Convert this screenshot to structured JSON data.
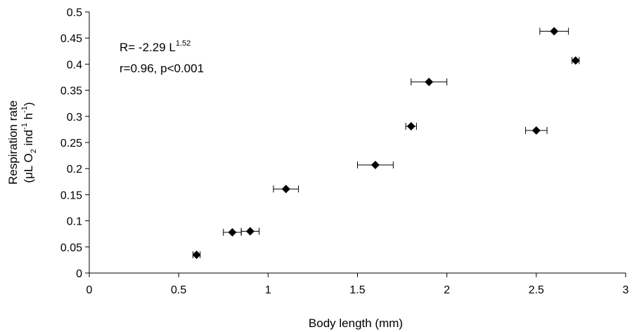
{
  "chart_data": {
    "type": "scatter",
    "xlabel": "Body length (mm)",
    "ylabel": {
      "line1": "Respiration rate",
      "line2_parts": [
        "(μL O",
        "2",
        " ind",
        "-1",
        " h",
        "-1",
        ")"
      ]
    },
    "xlim": [
      0,
      3
    ],
    "ylim": [
      0,
      0.5
    ],
    "x_ticks": [
      "0",
      "0.5",
      "1",
      "1.5",
      "2",
      "2.5",
      "3"
    ],
    "y_ticks": [
      "0",
      "0.05",
      "0.1",
      "0.15",
      "0.2",
      "0.25",
      "0.3",
      "0.35",
      "0.4",
      "0.45",
      "0.5"
    ],
    "grid": false,
    "marker": "diamond",
    "marker_color": "#000000",
    "annotation": {
      "equation_base": "R= -2.29 L",
      "equation_exponent": "1.52",
      "stats": "r=0.96, p<0.001"
    },
    "points": [
      {
        "x": 0.6,
        "y": 0.035,
        "xerr": 0.02
      },
      {
        "x": 0.8,
        "y": 0.078,
        "xerr": 0.05
      },
      {
        "x": 0.9,
        "y": 0.08,
        "xerr": 0.05
      },
      {
        "x": 1.1,
        "y": 0.161,
        "xerr": 0.07
      },
      {
        "x": 1.6,
        "y": 0.207,
        "xerr": 0.1
      },
      {
        "x": 1.8,
        "y": 0.281,
        "xerr": 0.03
      },
      {
        "x": 1.9,
        "y": 0.366,
        "xerr": 0.1
      },
      {
        "x": 2.5,
        "y": 0.273,
        "xerr": 0.06
      },
      {
        "x": 2.6,
        "y": 0.463,
        "xerr": 0.08
      },
      {
        "x": 2.72,
        "y": 0.407,
        "xerr": 0.02
      }
    ]
  }
}
